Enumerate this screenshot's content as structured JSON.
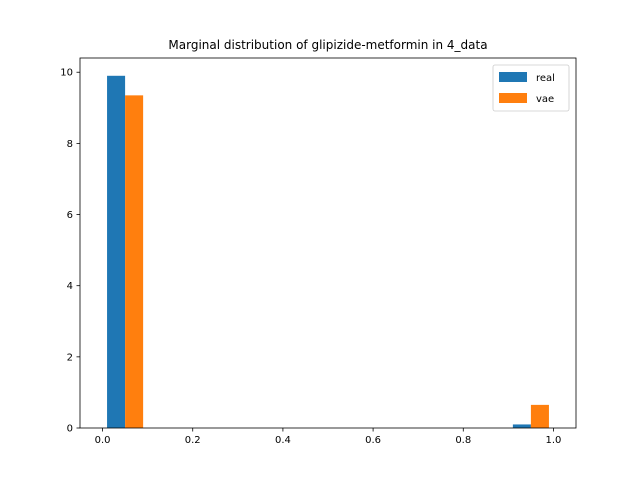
{
  "chart_data": {
    "type": "bar",
    "title": "Marginal distribution of glipizide-metformin in 4_data",
    "xlabel": "",
    "ylabel": "",
    "xlim": [
      -0.05,
      1.05
    ],
    "ylim": [
      0,
      10.4
    ],
    "x_ticks": [
      "0.0",
      "0.2",
      "0.4",
      "0.6",
      "0.8",
      "1.0"
    ],
    "y_ticks": [
      "0",
      "2",
      "4",
      "6",
      "8",
      "10"
    ],
    "grid": false,
    "legend_position": "top-right",
    "bin_edges": [
      0.0,
      0.1,
      0.2,
      0.3,
      0.4,
      0.5,
      0.6,
      0.7,
      0.8,
      0.9,
      1.0
    ],
    "series": [
      {
        "name": "real",
        "color": "#1f77b4",
        "values": [
          9.9,
          0,
          0,
          0,
          0,
          0,
          0,
          0,
          0,
          0.1
        ]
      },
      {
        "name": "vae",
        "color": "#ff7f0e",
        "values": [
          9.35,
          0,
          0,
          0,
          0,
          0,
          0,
          0,
          0,
          0.65
        ]
      }
    ]
  }
}
